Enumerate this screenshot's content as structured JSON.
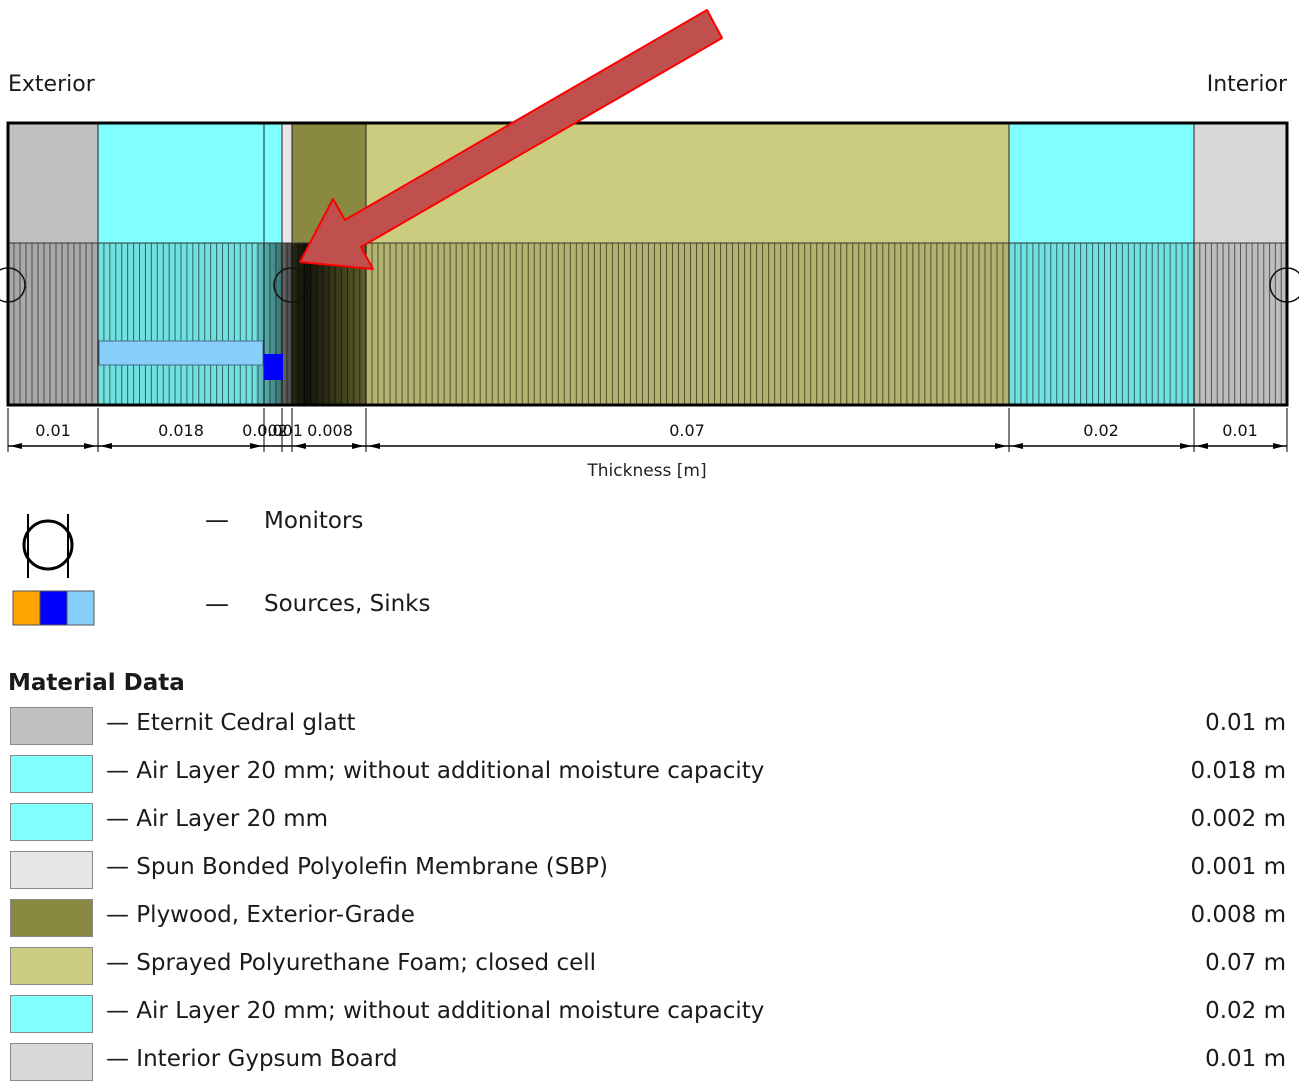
{
  "header": {
    "exterior": "Exterior",
    "interior": "Interior"
  },
  "axis": {
    "label": "Thickness [m]"
  },
  "layers": [
    {
      "thickness_label": "0.01",
      "thickness_m": 0.01,
      "color": "#c0c0c0"
    },
    {
      "thickness_label": "0.018",
      "thickness_m": 0.018,
      "color": "#80ffff"
    },
    {
      "thickness_label": "0.002",
      "thickness_m": 0.002,
      "color": "#80ffff"
    },
    {
      "thickness_label": "0.001",
      "thickness_m": 0.001,
      "color": "#e6e6e6"
    },
    {
      "thickness_label": "0.008",
      "thickness_m": 0.008,
      "color": "#898942"
    },
    {
      "thickness_label": "0.07",
      "thickness_m": 0.07,
      "color": "#cccc80"
    },
    {
      "thickness_label": "0.02",
      "thickness_m": 0.02,
      "color": "#80ffff"
    },
    {
      "thickness_label": "0.01",
      "thickness_m": 0.01,
      "color": "#d8d8d8"
    }
  ],
  "legend": {
    "monitors": "Monitors",
    "sources_sinks": "Sources, Sinks",
    "dash": "—",
    "source_colors": [
      "#ffa500",
      "#0000ff",
      "#87cefa"
    ]
  },
  "material_data": {
    "title": "Material Data",
    "items": [
      {
        "name": "— Eternit Cedral glatt",
        "thickness": "0.01 m",
        "color": "#c0c0c0"
      },
      {
        "name": "— Air Layer 20 mm; without additional moisture capacity",
        "thickness": "0.018 m",
        "color": "#80ffff"
      },
      {
        "name": "— Air Layer 20 mm",
        "thickness": "0.002 m",
        "color": "#80ffff"
      },
      {
        "name": "— Spun Bonded Polyolefin Membrane (SBP)",
        "thickness": "0.001 m",
        "color": "#e6e6e6"
      },
      {
        "name": "— Plywood, Exterior-Grade",
        "thickness": "0.008 m",
        "color": "#898942"
      },
      {
        "name": "— Sprayed Polyurethane Foam; closed cell",
        "thickness": "0.07 m",
        "color": "#cccc80"
      },
      {
        "name": "— Air Layer 20 mm; without additional moisture capacity",
        "thickness": "0.02 m",
        "color": "#80ffff"
      },
      {
        "name": "— Interior Gypsum Board",
        "thickness": "0.01 m",
        "color": "#d8d8d8"
      }
    ]
  },
  "annotation": {
    "arrow_color": "#c0504d",
    "arrow_outline": "#ff0000"
  }
}
